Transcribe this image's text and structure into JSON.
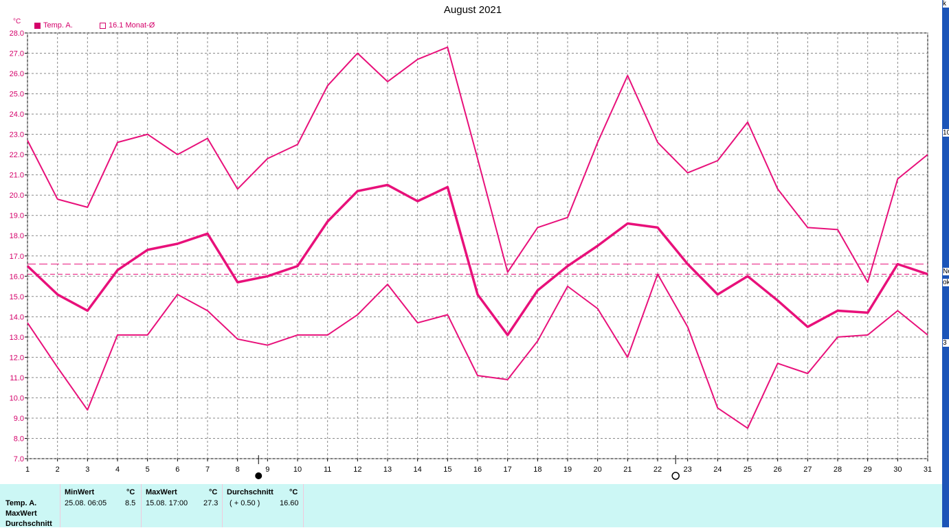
{
  "title": "August 2021",
  "unit_label": "°C",
  "legend": [
    {
      "label": "Temp. A.",
      "style": "filled",
      "color": "#d4006a"
    },
    {
      "label": "16.1 Monat-Ø",
      "style": "outline",
      "color": "#d4006a"
    }
  ],
  "chart_data": {
    "type": "line",
    "title": "August 2021",
    "x": [
      1,
      2,
      3,
      4,
      5,
      6,
      7,
      8,
      9,
      10,
      11,
      12,
      13,
      14,
      15,
      16,
      17,
      18,
      19,
      20,
      21,
      22,
      23,
      24,
      25,
      26,
      27,
      28,
      29,
      30,
      31
    ],
    "ylim": [
      7.0,
      28.0
    ],
    "ylabel": "°C",
    "y_ticks": [
      "7.0",
      "8.0",
      "9.0",
      "10.0",
      "11.0",
      "12.0",
      "13.0",
      "14.0",
      "15.0",
      "16.0",
      "17.0",
      "18.0",
      "19.0",
      "20.0",
      "21.0",
      "22.0",
      "23.0",
      "24.0",
      "25.0",
      "26.0",
      "27.0",
      "28.0"
    ],
    "grid": true,
    "series": [
      {
        "name": "Temp. A.",
        "role": "max",
        "width": 2,
        "values": [
          22.7,
          19.8,
          19.4,
          22.6,
          23.0,
          22.0,
          22.8,
          20.3,
          21.8,
          22.5,
          25.4,
          27.0,
          25.6,
          26.7,
          27.3,
          21.8,
          16.2,
          18.4,
          18.9,
          22.6,
          25.9,
          22.6,
          21.1,
          21.7,
          23.6,
          20.3,
          18.4,
          18.3,
          15.7,
          20.8,
          22.0
        ]
      },
      {
        "name": "Temp. A.",
        "role": "avg",
        "width": 3.5,
        "values": [
          16.5,
          15.1,
          14.3,
          16.3,
          17.3,
          17.6,
          18.1,
          15.7,
          16.0,
          16.5,
          18.7,
          20.2,
          20.5,
          19.7,
          20.4,
          15.1,
          13.1,
          15.3,
          16.5,
          17.5,
          18.6,
          18.4,
          16.6,
          15.1,
          16.0,
          14.8,
          13.5,
          14.3,
          14.2,
          16.6,
          16.1
        ]
      },
      {
        "name": "Temp. A.",
        "role": "min",
        "width": 2,
        "values": [
          13.7,
          11.5,
          9.4,
          13.1,
          13.1,
          15.1,
          14.3,
          12.9,
          12.6,
          13.1,
          13.1,
          14.1,
          15.6,
          13.7,
          14.1,
          11.1,
          10.9,
          12.8,
          15.5,
          14.4,
          12.0,
          16.1,
          13.5,
          9.5,
          8.5,
          11.7,
          11.2,
          13.0,
          13.1,
          14.3,
          13.1
        ]
      }
    ],
    "reference_lines": [
      {
        "value": 16.6,
        "style": "long-dash"
      },
      {
        "value": 16.1,
        "style": "dash"
      }
    ],
    "markers": [
      {
        "x": 8.7,
        "symbol": "filled-circle"
      },
      {
        "x": 22.6,
        "symbol": "open-circle"
      }
    ],
    "line_color": "#e8107a"
  },
  "stats": {
    "row_labels": [
      "Temp. A.",
      "MaxWert",
      "Durchschnitt"
    ],
    "min": {
      "header": "MinWert",
      "unit": "°C",
      "time": "25.08.  06:05",
      "value": "8.5"
    },
    "max": {
      "header": "MaxWert",
      "unit": "°C",
      "time": "15.08.  17:00",
      "value": "27.3"
    },
    "avg": {
      "header": "Durchschnitt",
      "unit": "°C",
      "note": "( + 0.50 )",
      "value": "16.60"
    }
  },
  "edge_fragments": [
    "k",
    "10",
    "Ne",
    "ok",
    "3"
  ]
}
